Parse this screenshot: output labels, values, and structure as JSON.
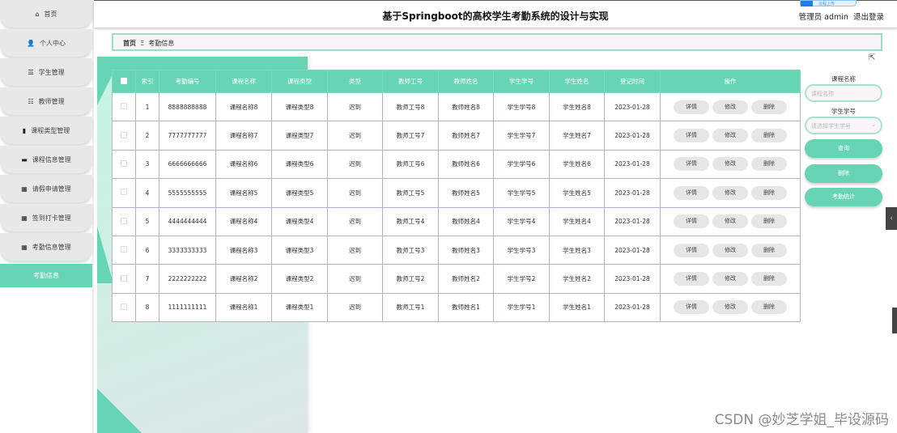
{
  "sidebar": {
    "items": [
      {
        "label": "首页",
        "icon": "home-icon",
        "glyph": "⌂"
      },
      {
        "label": "个人中心",
        "icon": "user-icon",
        "glyph": "👤"
      },
      {
        "label": "学生管理",
        "icon": "list-icon",
        "glyph": "☰"
      },
      {
        "label": "教师管理",
        "icon": "sliders-icon",
        "glyph": "☷"
      },
      {
        "label": "课程类型管理",
        "icon": "bar-chart-icon",
        "glyph": "▮"
      },
      {
        "label": "课程信息管理",
        "icon": "monitor-icon",
        "glyph": "▬"
      },
      {
        "label": "请假申请管理",
        "icon": "grid-icon",
        "glyph": "▦"
      },
      {
        "label": "签到打卡管理",
        "icon": "grid-icon",
        "glyph": "▦"
      },
      {
        "label": "考勤信息管理",
        "icon": "grid-icon",
        "glyph": "▦"
      }
    ],
    "active": "考勤信息"
  },
  "header": {
    "title": "基于Springboot的高校学生考勤系统的设计与实现",
    "user": "管理员 admin",
    "logout": "退出登录",
    "upload": "运程上传"
  },
  "breadcrumb": {
    "home": "首页",
    "sep": "Ξ",
    "current": "考勤信息"
  },
  "table": {
    "columns": [
      "索引",
      "考勤编号",
      "课程名称",
      "课程类型",
      "类型",
      "教师工号",
      "教师姓名",
      "学生学号",
      "学生姓名",
      "登记时间",
      "操作"
    ],
    "actions": [
      "详情",
      "修改",
      "删除"
    ],
    "rows": [
      [
        "1",
        "8888888888",
        "课程名称8",
        "课程类型8",
        "迟到",
        "教师工号8",
        "教师姓名8",
        "学生学号8",
        "学生姓名8",
        "2023-01-28"
      ],
      [
        "2",
        "7777777777",
        "课程名称7",
        "课程类型7",
        "迟到",
        "教师工号7",
        "教师姓名7",
        "学生学号7",
        "学生姓名7",
        "2023-01-28"
      ],
      [
        "3",
        "6666666666",
        "课程名称6",
        "课程类型6",
        "迟到",
        "教师工号6",
        "教师姓名6",
        "学生学号6",
        "学生姓名6",
        "2023-01-28"
      ],
      [
        "4",
        "5555555555",
        "课程名称5",
        "课程类型5",
        "迟到",
        "教师工号5",
        "教师姓名5",
        "学生学号5",
        "学生姓名5",
        "2023-01-28"
      ],
      [
        "5",
        "4444444444",
        "课程名称4",
        "课程类型4",
        "迟到",
        "教师工号4",
        "教师姓名4",
        "学生学号4",
        "学生姓名4",
        "2023-01-28"
      ],
      [
        "6",
        "3333333333",
        "课程名称3",
        "课程类型3",
        "迟到",
        "教师工号3",
        "教师姓名3",
        "学生学号3",
        "学生姓名3",
        "2023-01-28"
      ],
      [
        "7",
        "2222222222",
        "课程名称2",
        "课程类型2",
        "迟到",
        "教师工号2",
        "教师姓名2",
        "学生学号2",
        "学生姓名2",
        "2023-01-28"
      ],
      [
        "8",
        "1111111111",
        "课程名称1",
        "课程类型1",
        "迟到",
        "教师工号1",
        "教师姓名1",
        "学生学号1",
        "学生姓名1",
        "2023-01-28"
      ]
    ]
  },
  "search": {
    "course_label": "课程名称",
    "course_placeholder": "课程名称",
    "student_label": "学生学号",
    "student_placeholder": "请选择学生学号",
    "query": "查询",
    "delete": "删除",
    "stats": "考勤统计"
  },
  "watermark": "CSDN @妙芝学姐_毕设源码",
  "colors": {
    "accent": "#67d4b3",
    "button_gray": "#e6e6e6"
  }
}
